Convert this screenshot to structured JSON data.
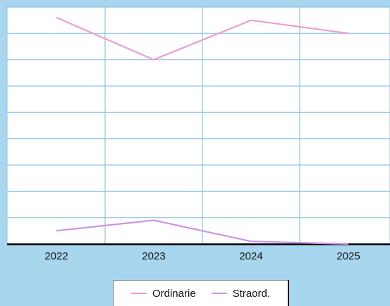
{
  "chart_data": {
    "type": "line",
    "categories": [
      "2022",
      "2023",
      "2024",
      "2025"
    ],
    "series": [
      {
        "name": "Ordinarie",
        "color": "#ec9cd0",
        "values": [
          8.6,
          7.0,
          8.5,
          8.0
        ]
      },
      {
        "name": "Straord.",
        "color": "#c896e6",
        "values": [
          0.5,
          0.9,
          0.1,
          0.0
        ]
      }
    ],
    "ylim": [
      0,
      9
    ],
    "grid": true,
    "grid_color": "#8ec4e4",
    "plot_background": "#ffffff",
    "legend_position": "bottom"
  }
}
